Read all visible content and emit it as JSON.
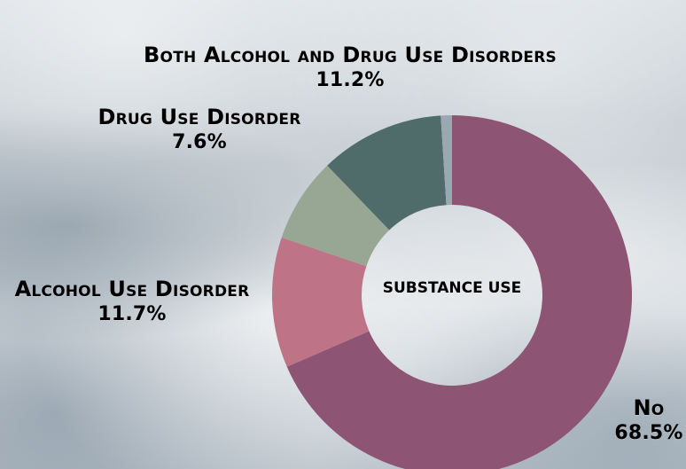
{
  "chart_data": {
    "type": "pie",
    "center_label": "SUBSTANCE USE",
    "slices": [
      {
        "name": "No",
        "value": 68.5,
        "value_label": "68.5%",
        "color": "#8D5473"
      },
      {
        "name": "Alcohol Use Disorder",
        "value": 11.7,
        "value_label": "11.7%",
        "color": "#BF7387"
      },
      {
        "name": "Drug Use Disorder",
        "value": 7.6,
        "value_label": "7.6%",
        "color": "#97A793"
      },
      {
        "name": "Both Alcohol and Drug Use Disorders",
        "value": 11.2,
        "value_label": "11.2%",
        "color": "#4F6C6B"
      },
      {
        "name": "",
        "value": 1.0,
        "value_label": "",
        "color": "#9DA7B1"
      }
    ]
  },
  "theme": {
    "background": "#C9D0D6",
    "text_color": "#000000"
  }
}
